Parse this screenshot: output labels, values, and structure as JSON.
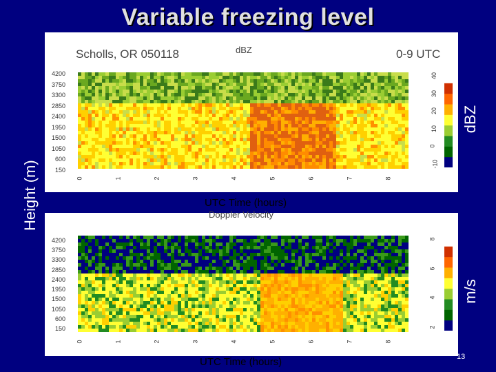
{
  "slide": {
    "title": "Variable freezing level",
    "y_axis_label": "Height (m)",
    "page_number": "13"
  },
  "top_panel": {
    "site": "Scholls, OR 050118",
    "variable": "dBZ",
    "time_range": "0-9 UTC",
    "colorbar_label": "dBZ",
    "colorbar_ticks": [
      "-10",
      "0",
      "10",
      "20",
      "30",
      "40"
    ],
    "x_label": "UTC Time (hours)"
  },
  "bottom_panel": {
    "variable": "Doppler Velocity",
    "colorbar_label": "m/s",
    "colorbar_ticks": [
      "2",
      "4",
      "6",
      "8"
    ],
    "x_label": "UTC Time (hours)"
  },
  "y_ticks": [
    "4200",
    "3750",
    "3300",
    "2850",
    "2400",
    "1950",
    "1500",
    "1050",
    "600",
    "150"
  ],
  "x_ticks": [
    "0",
    "1",
    "2",
    "3",
    "4",
    "5",
    "6",
    "7",
    "8"
  ],
  "colors": {
    "background": "#000080",
    "colormap": [
      "#000080",
      "#006400",
      "#228b22",
      "#9acd32",
      "#ffff33",
      "#ffb000",
      "#ff6600",
      "#d03000",
      "#ffffff"
    ]
  }
}
